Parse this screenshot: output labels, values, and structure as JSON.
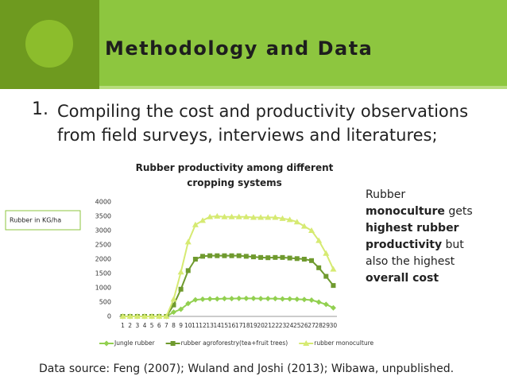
{
  "slide": {
    "title": "Methodology and Data",
    "bullet": {
      "number": "1.",
      "text": "Compiling the cost and productivity observations from field surveys, interviews and literatures;"
    },
    "annotation": [
      {
        "text": "Rubber ",
        "bold": false
      },
      {
        "text": "monoculture",
        "bold": true
      },
      {
        "text": " gets ",
        "bold": false
      },
      {
        "text": "highest rubber productivity",
        "bold": true
      },
      {
        "text": " but also the highest ",
        "bold": false
      },
      {
        "text": "overall cost",
        "bold": true
      }
    ],
    "source": "Data source: Feng (2007); Wuland and Joshi (2013); Wibawa, unpublished."
  },
  "chart_data": {
    "type": "line",
    "title": "Rubber productivity among different cropping systems",
    "y_label": "Rubber in  KG/ha",
    "categories": [
      "1",
      "2",
      "3",
      "4",
      "5",
      "6",
      "7",
      "8",
      "9",
      "10",
      "11",
      "12",
      "13",
      "14",
      "15",
      "16",
      "17",
      "18",
      "19",
      "20",
      "21",
      "22",
      "23",
      "24",
      "25",
      "26",
      "27",
      "28",
      "29",
      "30"
    ],
    "series": [
      {
        "name": "Jungle rubber",
        "color": "#92d050",
        "marker": "diamond",
        "values": [
          0,
          0,
          0,
          0,
          0,
          0,
          0,
          150,
          250,
          450,
          580,
          600,
          610,
          610,
          620,
          620,
          630,
          630,
          630,
          620,
          620,
          620,
          610,
          610,
          600,
          590,
          570,
          500,
          420,
          300
        ]
      },
      {
        "name": "rubber agroforestry(tea+fruit trees)",
        "color": "#6f9a2e",
        "marker": "square",
        "values": [
          0,
          0,
          0,
          0,
          0,
          0,
          0,
          400,
          950,
          1600,
          2000,
          2100,
          2120,
          2120,
          2120,
          2120,
          2120,
          2100,
          2080,
          2060,
          2050,
          2060,
          2060,
          2040,
          2020,
          2000,
          1950,
          1700,
          1400,
          1080
        ]
      },
      {
        "name": "rubber monoculture",
        "color": "#d6ea72",
        "marker": "triangle",
        "values": [
          0,
          0,
          0,
          0,
          0,
          0,
          0,
          600,
          1550,
          2600,
          3200,
          3350,
          3480,
          3500,
          3480,
          3480,
          3480,
          3480,
          3460,
          3460,
          3460,
          3460,
          3420,
          3380,
          3300,
          3150,
          3000,
          2650,
          2200,
          1650
        ]
      }
    ],
    "ylim": [
      0,
      4000
    ],
    "yticks": [
      0,
      500,
      1000,
      1500,
      2000,
      2500,
      3000,
      3500,
      4000
    ],
    "grid": false,
    "legend": "bottom"
  }
}
